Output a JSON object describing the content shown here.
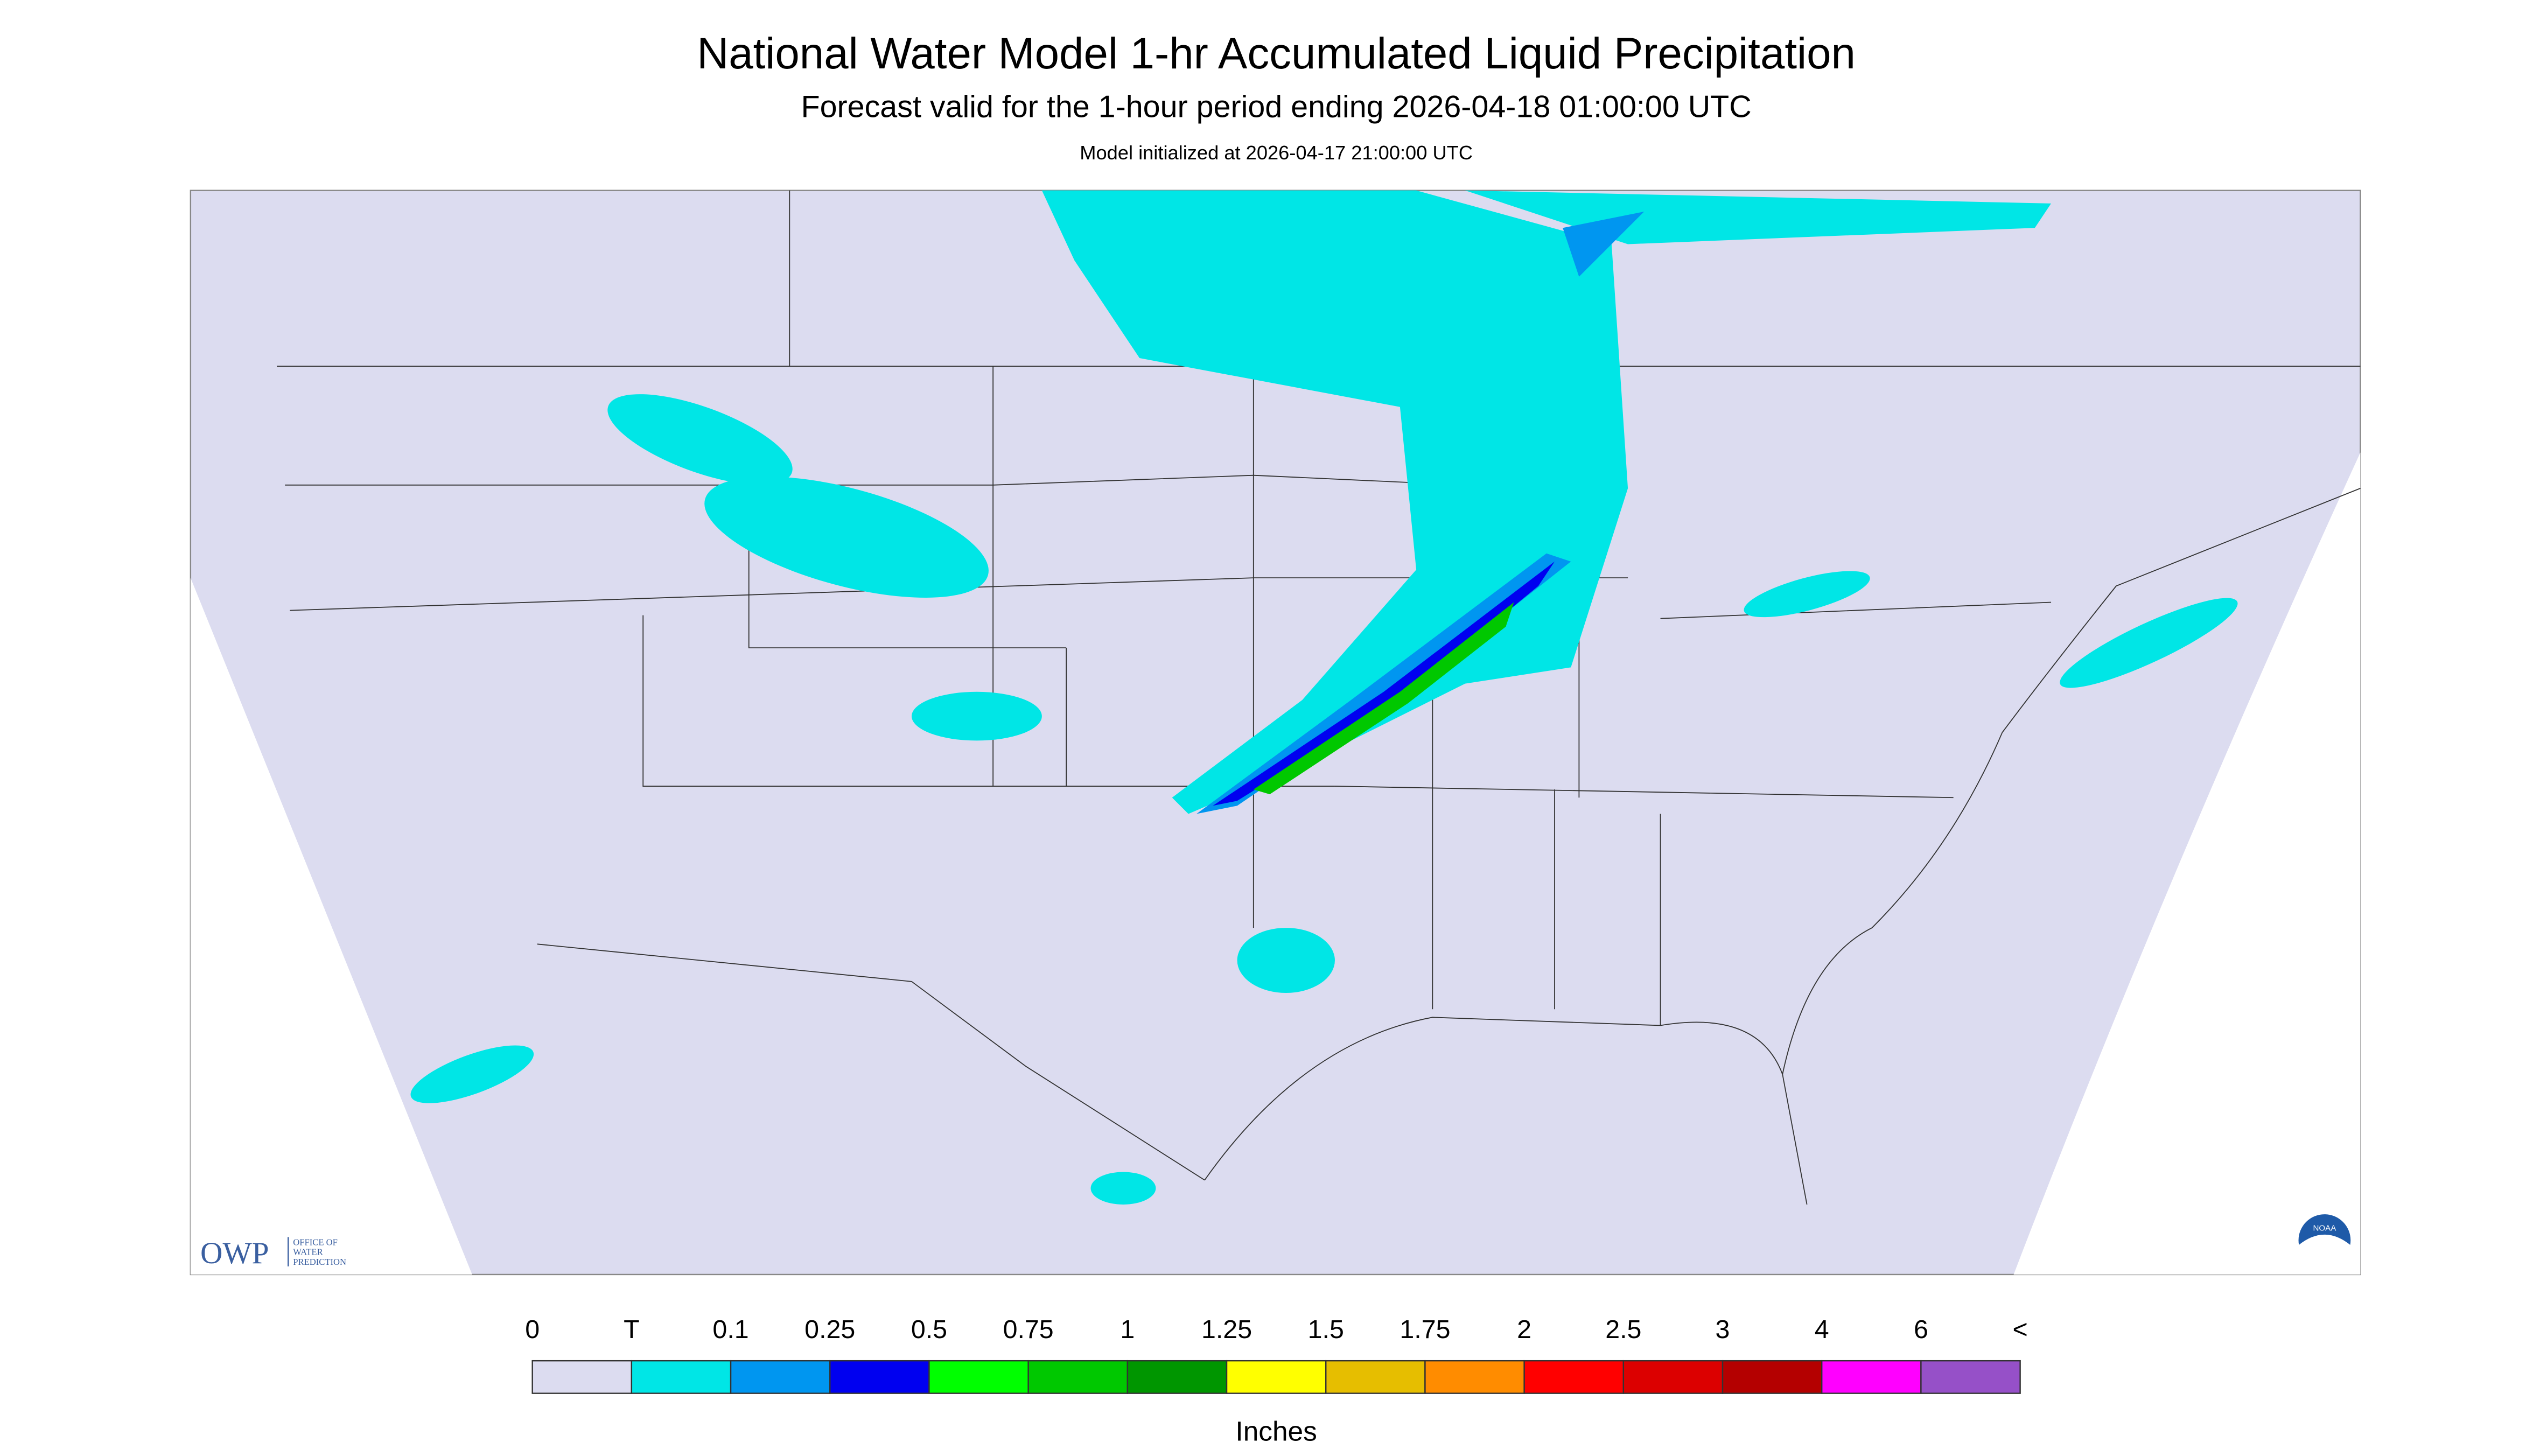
{
  "header": {
    "title": "National Water Model 1-hr Accumulated Liquid Precipitation",
    "subtitle": "Forecast valid for the 1-hour period ending 2026-04-18 01:00:00 UTC",
    "note": "Model initialized at 2026-04-17 21:00:00 UTC"
  },
  "logo": {
    "name": "OWP",
    "text": [
      "OFFICE OF",
      "WATER",
      "PREDICTION"
    ],
    "badge": "NOAA"
  },
  "legend": {
    "labels": [
      "0",
      "T",
      "0.1",
      "0.25",
      "0.5",
      "0.75",
      "1",
      "1.25",
      "1.5",
      "1.75",
      "2",
      "2.5",
      "3",
      "4",
      "6",
      "<"
    ],
    "colors": [
      "#dcdcf0",
      "#00e6e6",
      "#0096f0",
      "#0000f0",
      "#00ff00",
      "#00c800",
      "#009600",
      "#ffff00",
      "#e6be00",
      "#ff8c00",
      "#ff0000",
      "#dc0000",
      "#b40000",
      "#ff00ff",
      "#9650c8"
    ],
    "unit": "Inches"
  }
}
